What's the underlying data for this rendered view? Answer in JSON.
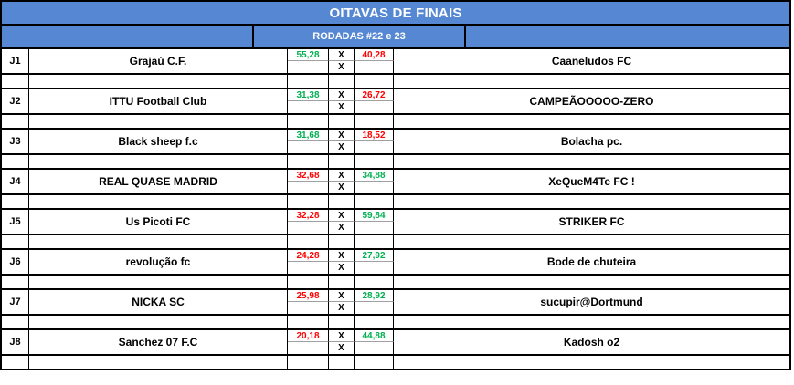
{
  "header": {
    "title": "OITAVAS DE FINAIS",
    "subtitle": "RODADAS #22 e 23"
  },
  "x_mark": "X",
  "colors": {
    "header_blue": "#5587d2",
    "win_green": "#00b050",
    "lose_red": "#ff0000",
    "grid_black": "#000000",
    "score_divider_grey": "#a0a0a0"
  },
  "matches": [
    {
      "id": "J1",
      "home": "Grajaú C.F.",
      "home_score": "55,28",
      "home_result": "win",
      "away_score": "40,28",
      "away_result": "loss",
      "away": "Caaneludos FC"
    },
    {
      "id": "J2",
      "home": "ITTU Football Club",
      "home_score": "31,38",
      "home_result": "win",
      "away_score": "26,72",
      "away_result": "loss",
      "away": "CAMPEÃOOOOO-ZERO"
    },
    {
      "id": "J3",
      "home": "Black sheep f.c",
      "home_score": "31,68",
      "home_result": "win",
      "away_score": "18,52",
      "away_result": "loss",
      "away": "Bolacha pc."
    },
    {
      "id": "J4",
      "home": "REAL QUASE MADRID",
      "home_score": "32,68",
      "home_result": "loss",
      "away_score": "34,88",
      "away_result": "win",
      "away": "XeQueM4Te FC !"
    },
    {
      "id": "J5",
      "home": "Us Picoti FC",
      "home_score": "32,28",
      "home_result": "loss",
      "away_score": "59,84",
      "away_result": "win",
      "away": "STRIKER FC"
    },
    {
      "id": "J6",
      "home": "revolução fc",
      "home_score": "24,28",
      "home_result": "loss",
      "away_score": "27,92",
      "away_result": "win",
      "away": "Bode de chuteira"
    },
    {
      "id": "J7",
      "home": "NICKA SC",
      "home_score": "25,98",
      "home_result": "loss",
      "away_score": "28,92",
      "away_result": "win",
      "away": "sucupir@Dortmund"
    },
    {
      "id": "J8",
      "home": "Sanchez 07 F.C",
      "home_score": "20,18",
      "home_result": "loss",
      "away_score": "44,88",
      "away_result": "win",
      "away": "Kadosh o2"
    }
  ]
}
